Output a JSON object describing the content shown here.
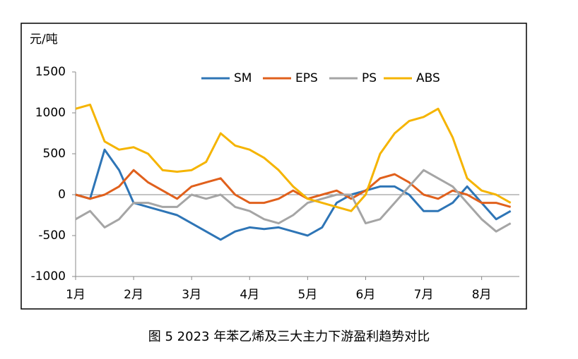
{
  "chart_data": {
    "type": "line",
    "y_unit": "元/吨",
    "caption": "图 5  2023 年苯乙烯及三大主力下游盈利趋势对比",
    "x": [
      0,
      0.25,
      0.5,
      0.75,
      1,
      1.25,
      1.5,
      1.75,
      2,
      2.25,
      2.5,
      2.75,
      3,
      3.25,
      3.5,
      3.75,
      4,
      4.25,
      4.5,
      4.75,
      5,
      5.25,
      5.5,
      5.75,
      6,
      6.25,
      6.5,
      6.75,
      7,
      7.25,
      7.5
    ],
    "xlim": [
      0,
      7.65
    ],
    "xticks": [
      {
        "value": 0,
        "label": "1月"
      },
      {
        "value": 1,
        "label": "2月"
      },
      {
        "value": 2,
        "label": "3月"
      },
      {
        "value": 3,
        "label": "4月"
      },
      {
        "value": 4,
        "label": "5月"
      },
      {
        "value": 5,
        "label": "6月"
      },
      {
        "value": 6,
        "label": "7月"
      },
      {
        "value": 7,
        "label": "8月"
      }
    ],
    "ylim": [
      -1000,
      1500
    ],
    "yticks": [
      1500,
      1000,
      500,
      0,
      -500,
      -1000
    ],
    "series": [
      {
        "name": "SM",
        "color": "#2e75b6",
        "values": [
          0,
          -50,
          550,
          300,
          -100,
          -150,
          -200,
          -250,
          -350,
          -450,
          -550,
          -450,
          -400,
          -420,
          -400,
          -450,
          -500,
          -400,
          -100,
          0,
          50,
          100,
          100,
          0,
          -200,
          -200,
          -100,
          100,
          -100,
          -300,
          -200
        ]
      },
      {
        "name": "EPS",
        "color": "#e0601c",
        "values": [
          0,
          -50,
          0,
          100,
          300,
          150,
          50,
          -50,
          100,
          150,
          200,
          0,
          -100,
          -100,
          -50,
          50,
          -50,
          0,
          50,
          -50,
          50,
          200,
          250,
          150,
          0,
          -50,
          50,
          0,
          -100,
          -100,
          -150
        ]
      },
      {
        "name": "PS",
        "color": "#a5a5a5",
        "values": [
          -300,
          -200,
          -400,
          -300,
          -100,
          -100,
          -150,
          -150,
          0,
          -50,
          0,
          -150,
          -200,
          -300,
          -350,
          -250,
          -100,
          -50,
          0,
          0,
          -350,
          -300,
          -100,
          100,
          300,
          200,
          100,
          -100,
          -300,
          -450,
          -350
        ]
      },
      {
        "name": "ABS",
        "color": "#f5b400",
        "values": [
          1050,
          1100,
          650,
          550,
          580,
          500,
          300,
          280,
          300,
          400,
          750,
          600,
          550,
          450,
          300,
          100,
          -50,
          -100,
          -150,
          -200,
          0,
          500,
          750,
          900,
          950,
          1050,
          700,
          200,
          50,
          0,
          -100
        ]
      }
    ]
  }
}
